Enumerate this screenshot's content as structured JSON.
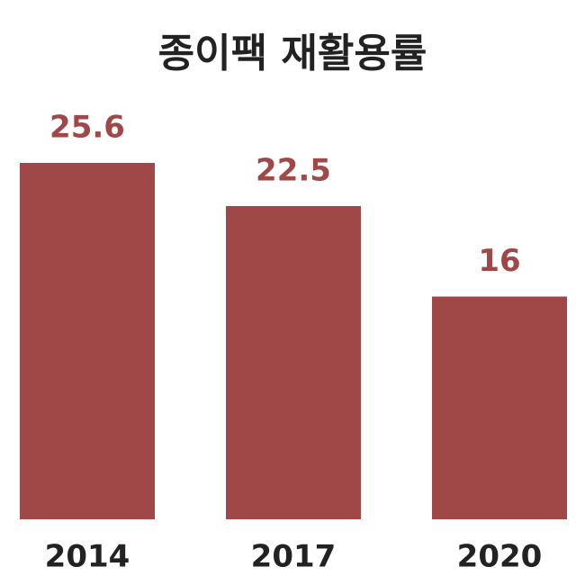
{
  "chart_data": {
    "type": "bar",
    "title": "종이팩 재활용률",
    "categories": [
      "2014",
      "2017",
      "2020"
    ],
    "values": [
      25.6,
      22.5,
      16
    ],
    "color": "#a04848"
  }
}
